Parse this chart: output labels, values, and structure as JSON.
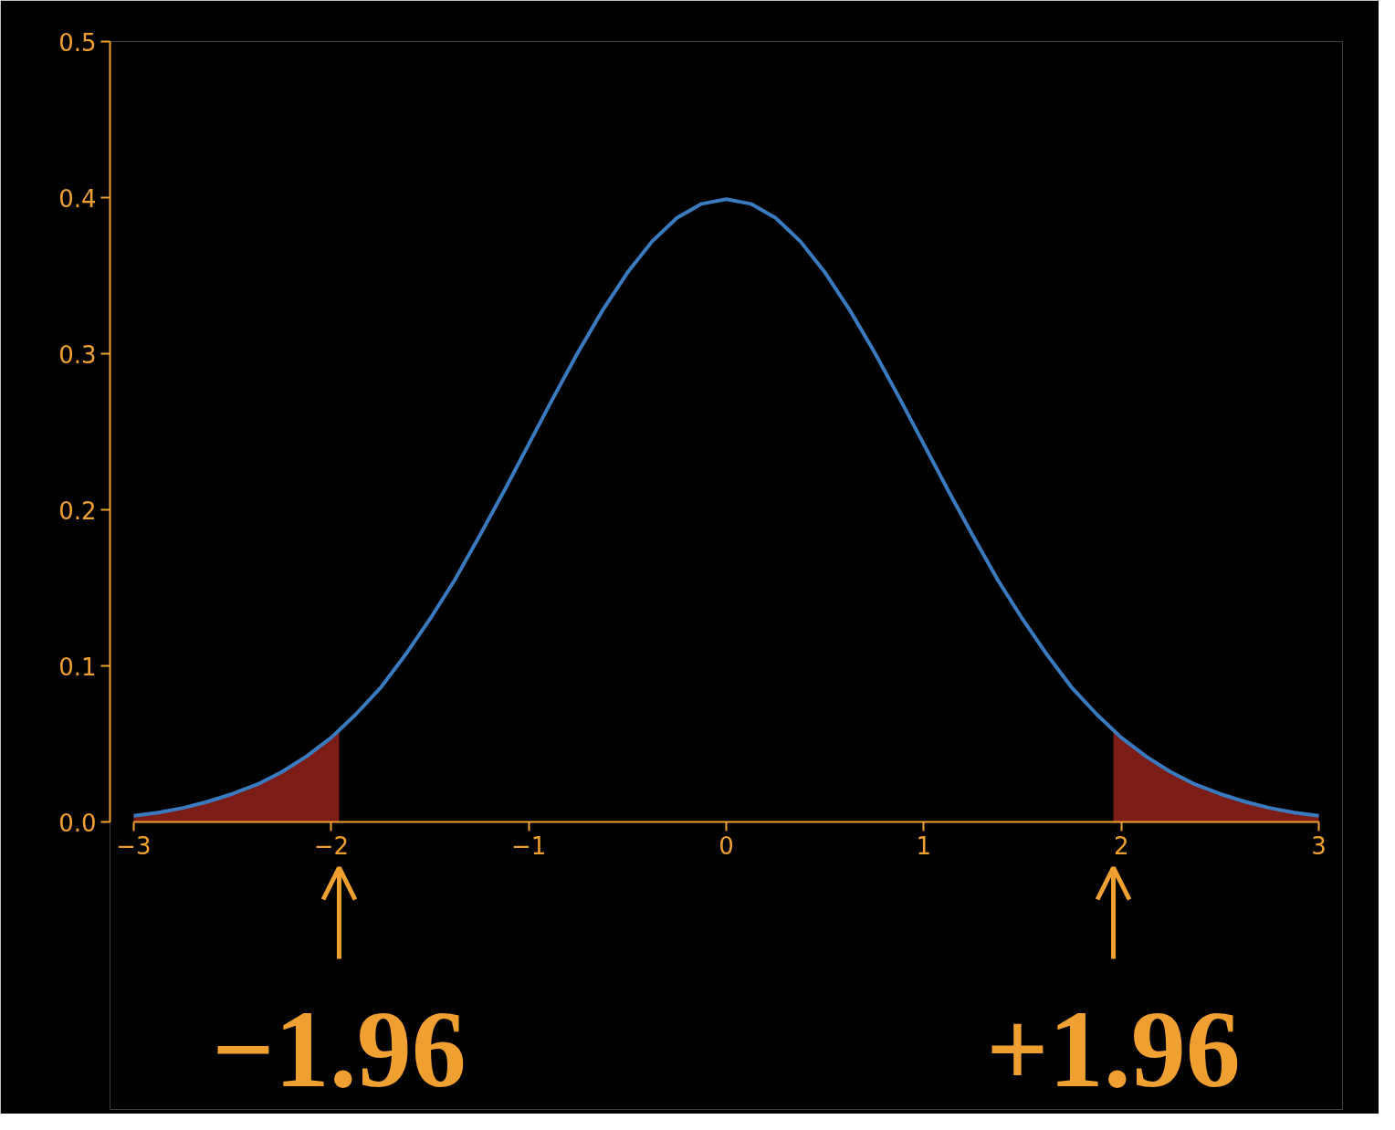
{
  "chart_data": {
    "type": "line",
    "x": [
      -3,
      -2.875,
      -2.75,
      -2.625,
      -2.5,
      -2.375,
      -2.25,
      -2.125,
      -2,
      -1.875,
      -1.75,
      -1.625,
      -1.5,
      -1.375,
      -1.25,
      -1.125,
      -1,
      -0.875,
      -0.75,
      -0.625,
      -0.5,
      -0.375,
      -0.25,
      -0.125,
      0,
      0.125,
      0.25,
      0.375,
      0.5,
      0.625,
      0.75,
      0.875,
      1,
      1.125,
      1.25,
      1.375,
      1.5,
      1.625,
      1.75,
      1.875,
      2,
      2.125,
      2.25,
      2.375,
      2.5,
      2.625,
      2.75,
      2.875,
      3
    ],
    "series": [
      {
        "color": "#3a7abf",
        "values": [
          0.004,
          0.006,
          0.009,
          0.013,
          0.018,
          0.024,
          0.032,
          0.042,
          0.054,
          0.069,
          0.086,
          0.107,
          0.13,
          0.155,
          0.183,
          0.212,
          0.242,
          0.272,
          0.301,
          0.328,
          0.352,
          0.372,
          0.387,
          0.396,
          0.399,
          0.396,
          0.387,
          0.372,
          0.352,
          0.328,
          0.301,
          0.272,
          0.242,
          0.212,
          0.183,
          0.155,
          0.13,
          0.107,
          0.086,
          0.069,
          0.054,
          0.042,
          0.032,
          0.024,
          0.018,
          0.013,
          0.009,
          0.006,
          0.004
        ]
      },
      {
        "type": "area",
        "color": "#7b1c16",
        "x": [
          -3,
          -2.875,
          -2.75,
          -2.625,
          -2.5,
          -2.375,
          -2.25,
          -2.125,
          -2,
          -1.96
        ],
        "values": [
          0.004,
          0.006,
          0.009,
          0.013,
          0.018,
          0.024,
          0.032,
          0.042,
          0.054,
          0.058
        ]
      },
      {
        "type": "area",
        "color": "#7b1c16",
        "x": [
          1.96,
          2,
          2.125,
          2.25,
          2.375,
          2.5,
          2.625,
          2.75,
          2.875,
          3
        ],
        "values": [
          0.058,
          0.054,
          0.042,
          0.032,
          0.024,
          0.018,
          0.013,
          0.009,
          0.006,
          0.004
        ]
      }
    ],
    "xlim": [
      -3,
      3
    ],
    "ylim": [
      0,
      0.5
    ],
    "xticks": [
      {
        "value": -3,
        "label": "−3"
      },
      {
        "value": -2,
        "label": "−2"
      },
      {
        "value": -1,
        "label": "−1"
      },
      0,
      1,
      2,
      3
    ],
    "yticks": [
      {
        "value": 0,
        "label": "0.0"
      },
      {
        "value": 0.1,
        "label": "0.1"
      },
      {
        "value": 0.2,
        "label": "0.2"
      },
      {
        "value": 0.3,
        "label": "0.3"
      },
      {
        "value": 0.4,
        "label": "0.4"
      },
      {
        "value": 0.5,
        "label": "0.5"
      }
    ],
    "grid": false,
    "annotations": [
      {
        "text": "−1.96",
        "x": -1.96,
        "y": 0
      },
      {
        "text": "+1.96",
        "x": 1.96,
        "y": 0
      }
    ]
  }
}
